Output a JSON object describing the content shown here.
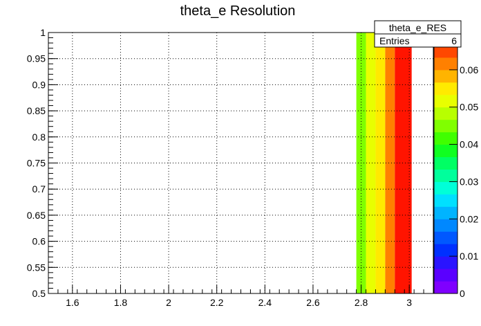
{
  "chart_data": {
    "type": "heatmap",
    "title": "theta_e Resolution",
    "xlabel": "",
    "ylabel": "",
    "xlim": [
      1.5,
      3.1
    ],
    "ylim": [
      0.5,
      1.0
    ],
    "x_ticks": [
      "1.6",
      "1.8",
      "2",
      "2.2",
      "2.4",
      "2.6",
      "2.8",
      "3"
    ],
    "y_ticks": [
      "0.5",
      "0.55",
      "0.6",
      "0.65",
      "0.7",
      "0.75",
      "0.8",
      "0.85",
      "0.9",
      "0.95",
      "1"
    ],
    "grid": true,
    "cells": [
      {
        "x0": 2.78,
        "x1": 2.82,
        "y0": 0.5,
        "y1": 1.0,
        "value": 0.046
      },
      {
        "x0": 2.82,
        "x1": 2.86,
        "y0": 0.5,
        "y1": 1.0,
        "value": 0.05
      },
      {
        "x0": 2.86,
        "x1": 2.9,
        "y0": 0.5,
        "y1": 1.0,
        "value": 0.054
      },
      {
        "x0": 2.9,
        "x1": 2.94,
        "y0": 0.5,
        "y1": 1.0,
        "value": 0.062
      },
      {
        "x0": 2.94,
        "x1": 3.01,
        "y0": 0.5,
        "y1": 1.0,
        "value": 0.07
      }
    ],
    "colorbar": {
      "min": 0,
      "max": 0.07,
      "ticks": [
        "0",
        "0.01",
        "0.02",
        "0.03",
        "0.04",
        "0.05",
        "0.06"
      ],
      "colors": [
        "#7f00ff",
        "#5a00ff",
        "#2a14ff",
        "#0030ff",
        "#0058ff",
        "#0088ff",
        "#00b4ff",
        "#00e0ff",
        "#00ffd8",
        "#00ff9c",
        "#00ff64",
        "#10ff20",
        "#40ff00",
        "#80ff00",
        "#b8ff00",
        "#e8ff00",
        "#ffea00",
        "#ffb400",
        "#ff8000",
        "#ff4800",
        "#ff1400"
      ]
    },
    "stats_box": {
      "name": "theta_e_RES",
      "entries_label": "Entries",
      "entries_value": "6"
    }
  }
}
